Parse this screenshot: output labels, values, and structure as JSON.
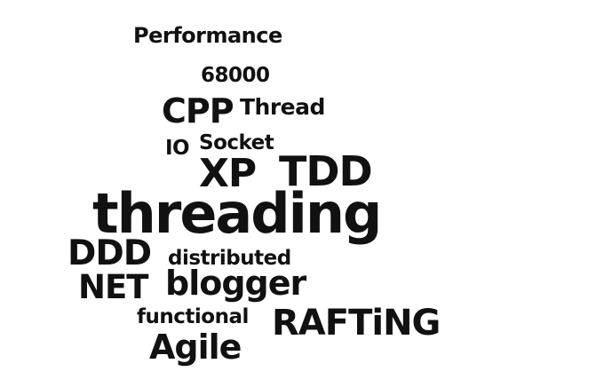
{
  "word_cloud": {
    "words": {
      "performance": "Performance",
      "n68000": "68000",
      "cpp": "CPP",
      "thread": "Thread",
      "io": "IO",
      "socket": "Socket",
      "xp": "XP",
      "tdd": "TDD",
      "threading": "threading",
      "ddd": "DDD",
      "distributed": "distributed",
      "net": "NET",
      "blogger": "blogger",
      "functional": "functional",
      "rafting": "RAFTiNG",
      "agile": "Agile"
    },
    "text_color": "#111111",
    "background_color": "#ffffff"
  }
}
